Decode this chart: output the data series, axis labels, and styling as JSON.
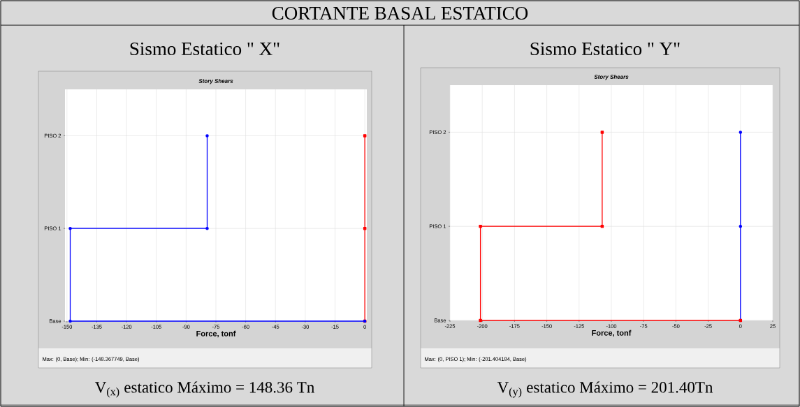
{
  "chart_data": [
    {
      "type": "line",
      "orientation": "horizontal",
      "title": "Sismo Estatico \" X\"",
      "subtitle": "Story Shears",
      "xlabel": "Force, tonf",
      "categories": [
        "PISO 2",
        "PISO 1",
        "Base"
      ],
      "series": [
        {
          "color": "#ff0000",
          "marker": "square",
          "x": [
            "Base",
            "PISO 1",
            "PISO 2"
          ],
          "values": [
            0,
            0,
            0
          ]
        },
        {
          "color": "#0000ff",
          "marker": "circle",
          "x": [
            "Base",
            "Base",
            "PISO 1",
            "PISO 1",
            "PISO 2"
          ],
          "values": [
            0,
            -148.367749,
            -148.367749,
            -79.4,
            -79.4
          ]
        }
      ],
      "xlim": [
        -151,
        1
      ],
      "xticks": [
        -150,
        -135,
        -120,
        -105,
        -90,
        -75,
        -60,
        -45,
        -30,
        -15,
        0
      ],
      "grid": true,
      "annotations": [
        "CORTANTE BASAL ESTATICO",
        "Max: (0, Base);   Min: (-148.367749, Base)",
        "V$_{(x)}$ estatico Máximo = 148.36 Tn"
      ]
    },
    {
      "type": "line",
      "orientation": "horizontal",
      "title": "Sismo Estatico \" Y\"",
      "subtitle": "Story Shears",
      "xlabel": "Force, tonf",
      "categories": [
        "PISO 2",
        "PISO 1",
        "Base"
      ],
      "series": [
        {
          "color": "#0000ff",
          "marker": "circle",
          "x": [
            "Base",
            "PISO 1",
            "PISO 2"
          ],
          "values": [
            0,
            0,
            0
          ]
        },
        {
          "color": "#ff0000",
          "marker": "square",
          "x": [
            "Base",
            "Base",
            "PISO 1",
            "PISO 1",
            "PISO 2"
          ],
          "values": [
            0,
            -201.404184,
            -201.404184,
            -107.1,
            -107.1
          ]
        }
      ],
      "xlim": [
        -225,
        25
      ],
      "xticks": [
        -225,
        -200,
        -175,
        -150,
        -125,
        -100,
        -75,
        -50,
        -25,
        0,
        25
      ],
      "grid": true,
      "annotations": [
        "Max: (0, PISO 1);   Min: (-201.404184, Base)",
        "V$_{(y)}$ estatico Máximo = 201.40Tn"
      ]
    }
  ]
}
